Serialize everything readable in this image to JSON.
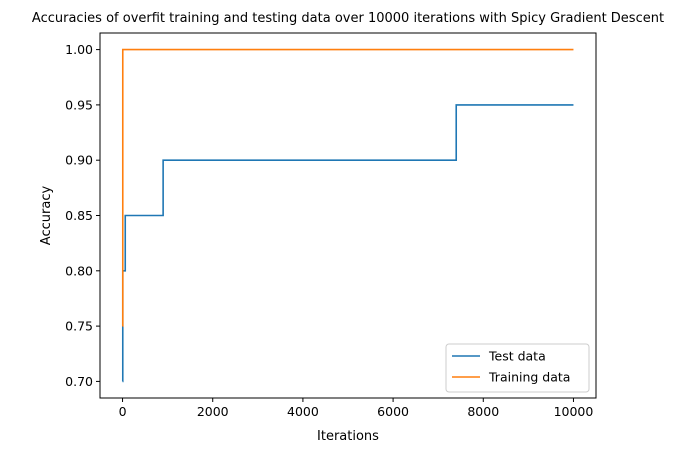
{
  "chart_data": {
    "type": "line",
    "title": "Accuracies of overfit training and testing data over 10000 iterations with Spicy Gradient Descent",
    "xlabel": "Iterations",
    "ylabel": "Accuracy",
    "xlim": [
      -500,
      10500
    ],
    "ylim": [
      0.685,
      1.015
    ],
    "xticks": [
      0,
      2000,
      4000,
      6000,
      8000,
      10000
    ],
    "xtick_labels": [
      "0",
      "2000",
      "4000",
      "6000",
      "8000",
      "10000"
    ],
    "yticks": [
      0.7,
      0.75,
      0.8,
      0.85,
      0.9,
      0.95,
      1.0
    ],
    "ytick_labels": [
      "0.70",
      "0.75",
      "0.80",
      "0.85",
      "0.90",
      "0.95",
      "1.00"
    ],
    "grid": false,
    "legend_position": "bottom-right",
    "series": [
      {
        "name": "Test data",
        "color": "#1f77b4",
        "step": "post",
        "x": [
          0,
          5,
          60,
          900,
          7400,
          10000
        ],
        "y": [
          0.7,
          0.8,
          0.85,
          0.9,
          0.95,
          0.95
        ]
      },
      {
        "name": "Training data",
        "color": "#ff7f0e",
        "step": "post",
        "x": [
          0,
          5,
          10000
        ],
        "y": [
          0.75,
          1.0,
          1.0
        ]
      }
    ]
  }
}
